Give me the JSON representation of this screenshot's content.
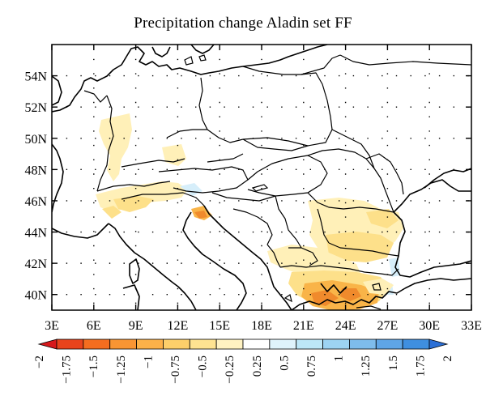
{
  "title": "Precipitation change Aladin set FF",
  "map": {
    "lon_range": [
      3,
      33
    ],
    "lat_range": [
      39,
      56
    ],
    "lon_ticks": [
      "3E",
      "6E",
      "9E",
      "12E",
      "15E",
      "18E",
      "21E",
      "24E",
      "27E",
      "30E",
      "33E"
    ],
    "lat_ticks": [
      "40N",
      "42N",
      "44N",
      "46N",
      "48N",
      "50N",
      "52N",
      "54N"
    ],
    "grid": "dotted"
  },
  "colorbar": {
    "labels": [
      "−2",
      "−1.75",
      "−1.5",
      "−1.25",
      "−1",
      "−0.75",
      "−0.5",
      "−0.25",
      "0.25",
      "0.5",
      "0.75",
      "1",
      "1.25",
      "1.5",
      "1.75",
      "2"
    ],
    "colors": [
      "#d7191c",
      "#e8431c",
      "#f46d1f",
      "#f99533",
      "#fcb149",
      "#fdcf6a",
      "#fee391",
      "#fff2c2",
      "#ffffff",
      "#dff3fb",
      "#bde7f7",
      "#9dd3f2",
      "#7ebcec",
      "#5fa5e6",
      "#3f8fe0",
      "#2b6fd6"
    ],
    "extend": "both"
  },
  "colors": {
    "light_yellow": "#fff0b8",
    "yellow": "#fde08a",
    "orange": "#f9b448",
    "dark_orange": "#f08a2c",
    "light_blue": "#d6eefa",
    "coast": "#000000"
  }
}
